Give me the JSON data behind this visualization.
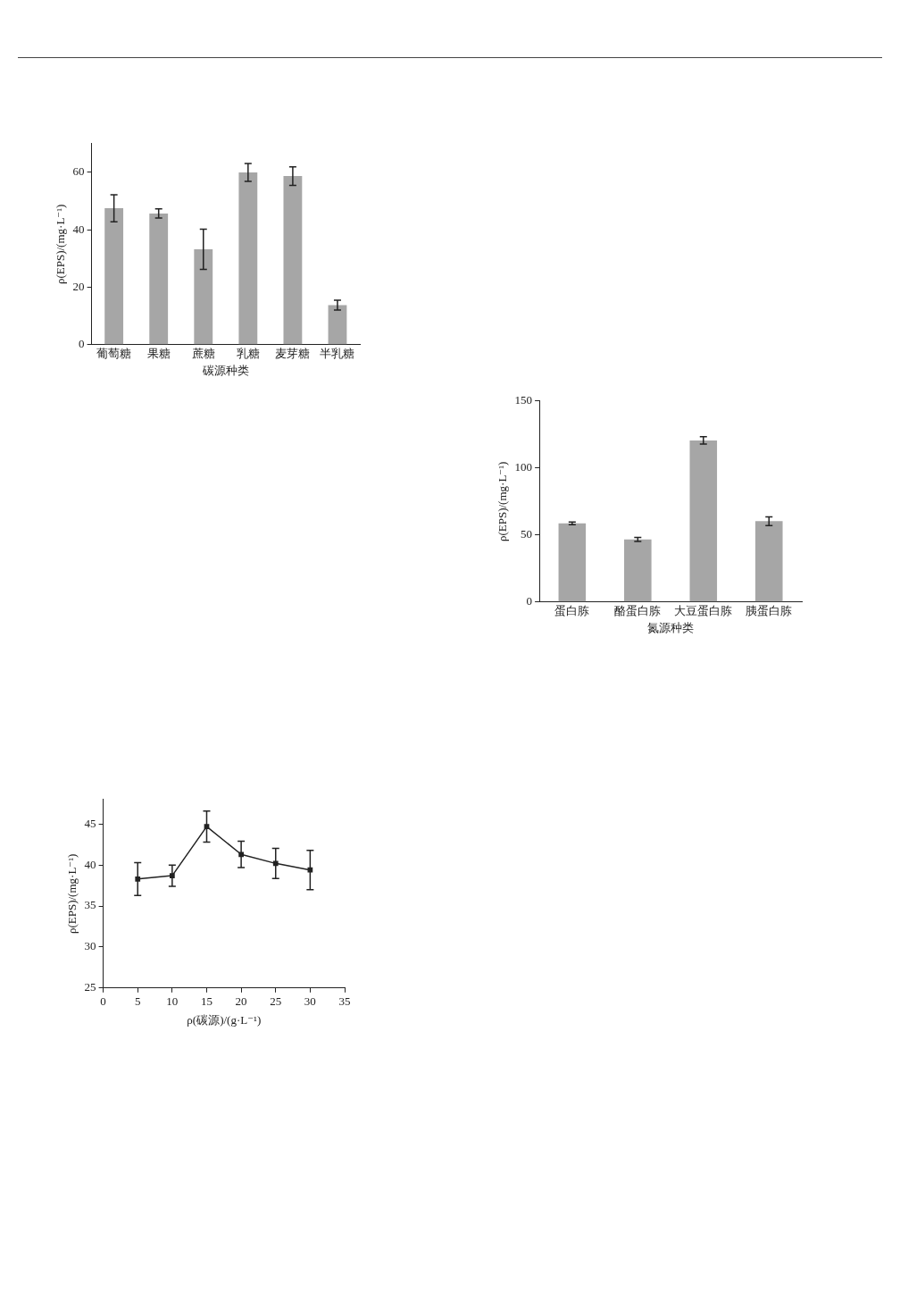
{
  "chart_data": [
    {
      "type": "bar",
      "categories": [
        "葡萄糖",
        "果糖",
        "蔗糖",
        "乳糖",
        "麦芽糖",
        "半乳糖"
      ],
      "values": [
        47.5,
        45.7,
        33.2,
        60,
        58.7,
        13.8
      ],
      "errors": [
        4.7,
        1.6,
        7,
        3.1,
        3.2,
        1.7
      ],
      "color": "#a6a6a6",
      "xlabel": "碳源种类",
      "ylabel": "ρ(EPS)/(mg·L⁻¹)",
      "ylim": [
        0,
        70
      ],
      "yticks": [
        0,
        20,
        40,
        60
      ]
    },
    {
      "type": "bar",
      "categories": [
        "蛋白胨",
        "酪蛋白胨",
        "大豆蛋白胨",
        "胰蛋白胨"
      ],
      "values": [
        58.7,
        46.7,
        120.6,
        60.3
      ],
      "errors": [
        1,
        1.5,
        2.7,
        3.2
      ],
      "color": "#a6a6a6",
      "xlabel": "氮源种类",
      "ylabel": "ρ(EPS)/(mg·L⁻¹)",
      "ylim": [
        0,
        150
      ],
      "yticks": [
        0,
        50,
        100,
        150
      ]
    },
    {
      "type": "line",
      "x": [
        5,
        10,
        15,
        20,
        25,
        30
      ],
      "values": [
        38.3,
        38.7,
        44.7,
        41.3,
        40.2,
        39.4
      ],
      "errors": [
        2,
        1.3,
        1.9,
        1.6,
        1.85,
        2.4
      ],
      "color": "#222222",
      "marker": "square",
      "line_style": "solid",
      "xlabel": "ρ(碳源)/(g·L⁻¹)",
      "ylabel": "ρ(EPS)/(mg·L⁻¹)",
      "xlim": [
        0,
        35
      ],
      "xticks": [
        0,
        5,
        10,
        15,
        20,
        25,
        30,
        35
      ],
      "ylim": [
        25,
        48
      ],
      "yticks": [
        25,
        30,
        35,
        40,
        45
      ]
    }
  ]
}
